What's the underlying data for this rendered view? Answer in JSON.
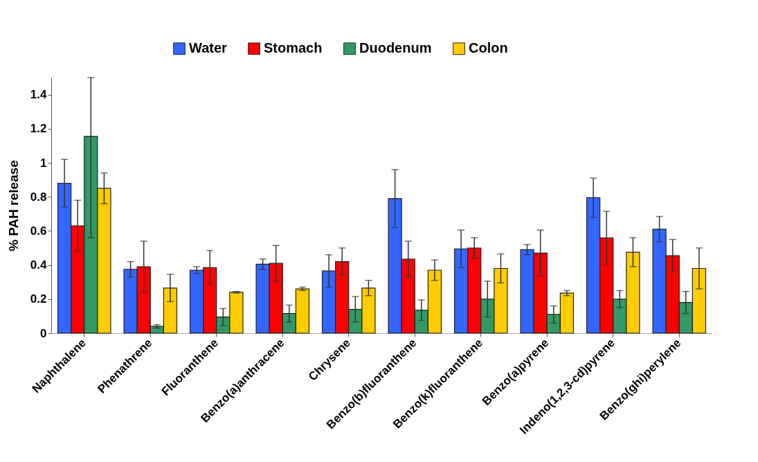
{
  "chart_data": {
    "type": "bar",
    "ylabel": "% PAH release",
    "categories": [
      "Naphthalene",
      "Phenathrene",
      "Fluoranthene",
      "Benzo(a)anthracene",
      "Chrysene",
      "Benzo(b)fluoranthene",
      "Benzo(k)fluoranthene",
      "Benzo(a)pyrene",
      "Indeno(1,2,3-cd)pyrene",
      "Benzo(ghi)perylene"
    ],
    "series": [
      {
        "name": "Water",
        "color": "#3366ff",
        "values": [
          0.88,
          0.375,
          0.37,
          0.405,
          0.365,
          0.79,
          0.495,
          0.49,
          0.795,
          0.61
        ],
        "errors": [
          0.14,
          0.045,
          0.02,
          0.03,
          0.095,
          0.17,
          0.11,
          0.03,
          0.115,
          0.075
        ]
      },
      {
        "name": "Stomach",
        "color": "#ff0000",
        "values": [
          0.63,
          0.39,
          0.385,
          0.41,
          0.42,
          0.435,
          0.5,
          0.47,
          0.56,
          0.455
        ],
        "errors": [
          0.15,
          0.15,
          0.1,
          0.105,
          0.08,
          0.105,
          0.06,
          0.135,
          0.155,
          0.095
        ]
      },
      {
        "name": "Duodenum",
        "color": "#339966",
        "values": [
          1.155,
          0.04,
          0.095,
          0.115,
          0.14,
          0.135,
          0.2,
          0.11,
          0.2,
          0.18
        ],
        "errors": [
          [
            0.56,
            1.5
          ],
          0.01,
          0.05,
          0.05,
          0.075,
          0.06,
          0.105,
          0.05,
          0.05,
          0.065
        ]
      },
      {
        "name": "Colon",
        "color": "#ffcc00",
        "values": [
          0.85,
          0.265,
          0.24,
          0.26,
          0.265,
          0.37,
          0.38,
          0.235,
          0.475,
          0.38
        ],
        "errors": [
          0.09,
          0.08,
          0.005,
          0.01,
          0.045,
          0.06,
          0.085,
          0.015,
          0.085,
          0.12
        ]
      }
    ],
    "ylim": [
      0,
      1.5
    ],
    "yticks": [
      0,
      0.2,
      0.4,
      0.6,
      0.8,
      1,
      1.2,
      1.4
    ],
    "grid": false,
    "legend": "top"
  }
}
